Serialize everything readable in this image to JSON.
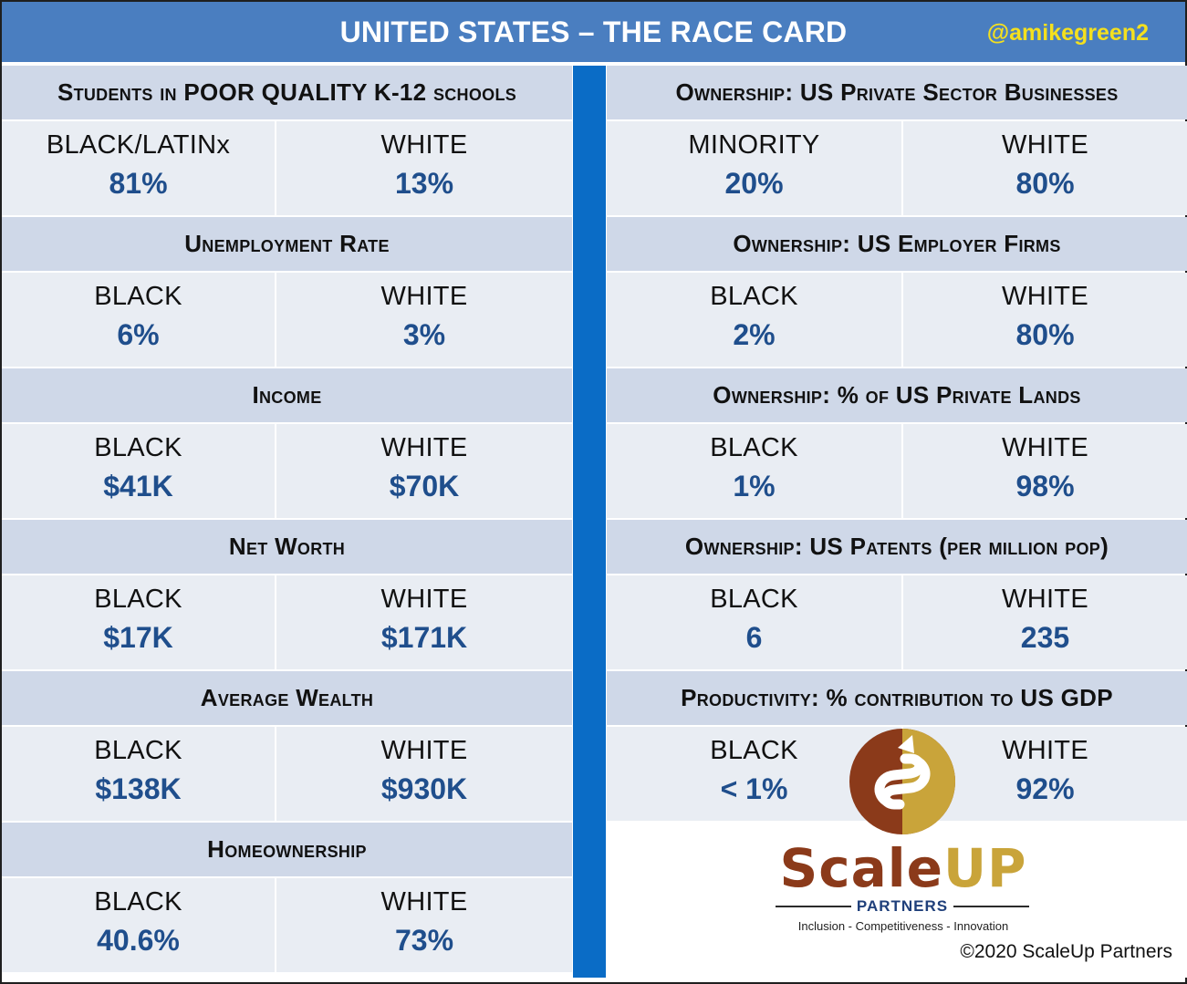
{
  "header": {
    "title": "UNITED STATES – THE RACE CARD",
    "handle": "@amikegreen2",
    "bar_color": "#4a7ec0",
    "handle_color": "#f4e01e"
  },
  "left_column": [
    {
      "heading": "Students in POOR QUALITY K-12 schools",
      "a_label": "BLACK/LATINx",
      "a_value": "81%",
      "b_label": "WHITE",
      "b_value": "13%"
    },
    {
      "heading": "Unemployment Rate",
      "a_label": "BLACK",
      "a_value": "6%",
      "b_label": "WHITE",
      "b_value": "3%"
    },
    {
      "heading": "Income",
      "a_label": "BLACK",
      "a_value": "$41K",
      "b_label": "WHITE",
      "b_value": "$70K"
    },
    {
      "heading": "Net Worth",
      "a_label": "BLACK",
      "a_value": "$17K",
      "b_label": "WHITE",
      "b_value": "$171K"
    },
    {
      "heading": "Average Wealth",
      "a_label": "BLACK",
      "a_value": "$138K",
      "b_label": "WHITE",
      "b_value": "$930K"
    },
    {
      "heading": "Homeownership",
      "a_label": "BLACK",
      "a_value": "40.6%",
      "b_label": "WHITE",
      "b_value": "73%"
    }
  ],
  "right_column": [
    {
      "heading": "Ownership: US Private Sector Businesses",
      "a_label": "MINORITY",
      "a_value": "20%",
      "b_label": "WHITE",
      "b_value": "80%"
    },
    {
      "heading": "Ownership: US Employer Firms",
      "a_label": "BLACK",
      "a_value": "2%",
      "b_label": "WHITE",
      "b_value": "80%"
    },
    {
      "heading": "Ownership: % of US Private Lands",
      "a_label": "BLACK",
      "a_value": "1%",
      "b_label": "WHITE",
      "b_value": "98%"
    },
    {
      "heading": "Ownership: US Patents (per million pop)",
      "a_label": "BLACK",
      "a_value": "6",
      "b_label": "WHITE",
      "b_value": "235"
    },
    {
      "heading": "Productivity: % contribution to US GDP",
      "a_label": "BLACK",
      "a_value": "< 1%",
      "b_label": "WHITE",
      "b_value": "92%"
    }
  ],
  "logo": {
    "brand_scale": "Scale",
    "brand_up": "UP",
    "partners": "PARTNERS",
    "tagline": "Inclusion - Competitiveness - Innovation",
    "mark_brown": "#8b3a1a",
    "mark_gold": "#c9a43a"
  },
  "copyright": "©2020 ScaleUp Partners"
}
